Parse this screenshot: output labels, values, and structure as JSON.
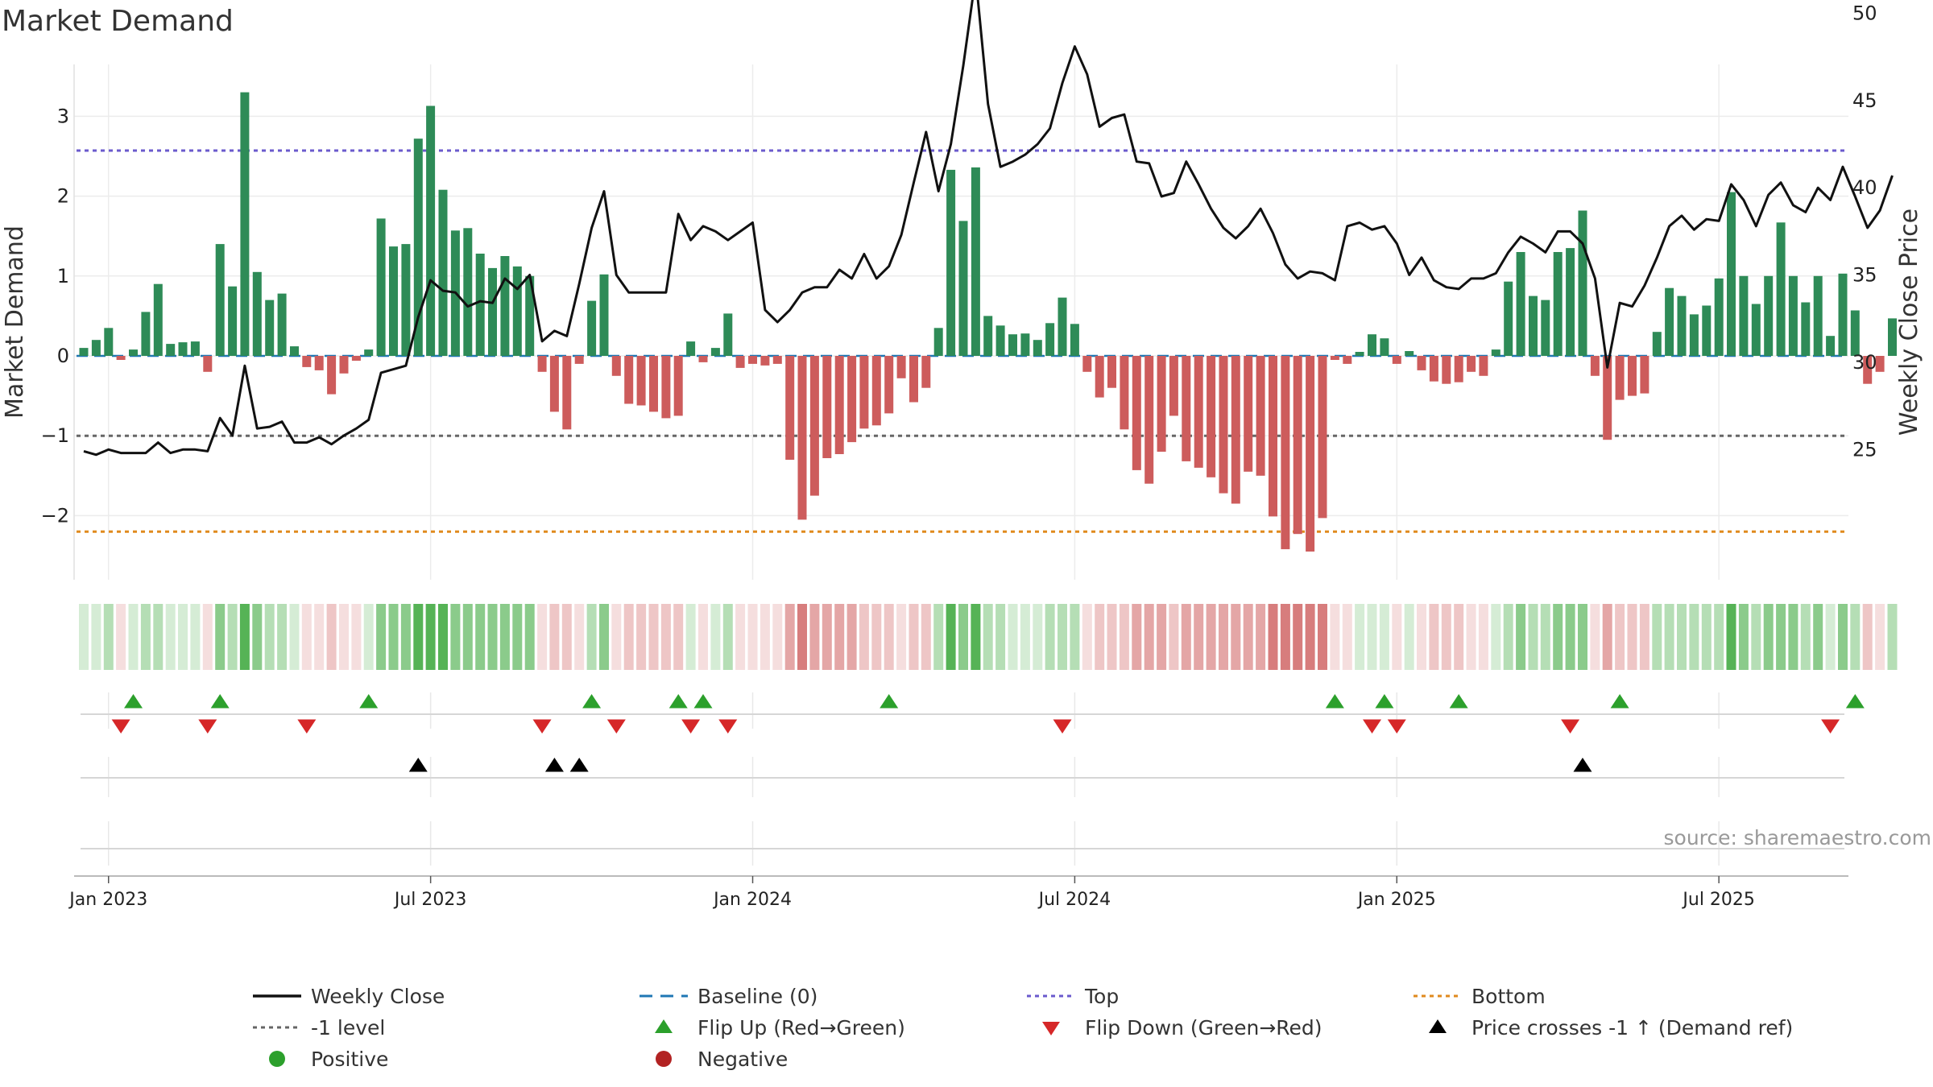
{
  "chart_data": {
    "type": "bar",
    "title": "Market Demand",
    "ylabel_left": "Market Demand",
    "ylabel_right": "Weekly Close Price",
    "ylim_left": [
      -2.7,
      3.6
    ],
    "ylim_right": [
      23.0,
      53.5
    ],
    "left_ticks": [
      3,
      2,
      1,
      0,
      -1,
      -2
    ],
    "left_tick_labels": [
      "3",
      "2",
      "1",
      "0",
      "−1",
      "−2"
    ],
    "right_ticks": [
      50,
      45,
      40,
      35,
      30,
      25
    ],
    "right_tick_labels": [
      "50",
      "45",
      "40",
      "35",
      "30",
      "25"
    ],
    "x_date_labels": [
      "Jan 2023",
      "Jul 2023",
      "Jan 2024",
      "Jul 2024",
      "Jan 2025",
      "Jul 2025"
    ],
    "x_date_label_weeks": [
      2,
      28,
      54,
      80,
      106,
      132
    ],
    "reference_lines": {
      "baseline": 0,
      "top": 2.57,
      "minus_one": -1,
      "bottom": -2.2
    },
    "demand": [
      0.1,
      0.2,
      0.35,
      -0.05,
      0.08,
      0.55,
      0.9,
      0.15,
      0.17,
      0.18,
      -0.2,
      1.4,
      0.87,
      3.3,
      1.05,
      0.7,
      0.78,
      0.12,
      -0.14,
      -0.18,
      -0.48,
      -0.22,
      -0.06,
      0.08,
      1.72,
      1.37,
      1.4,
      2.72,
      3.13,
      2.08,
      1.57,
      1.6,
      1.28,
      1.1,
      1.25,
      1.12,
      1.0,
      -0.2,
      -0.7,
      -0.92,
      -0.1,
      0.69,
      1.02,
      -0.25,
      -0.6,
      -0.62,
      -0.7,
      -0.78,
      -0.75,
      0.18,
      -0.08,
      0.1,
      0.53,
      -0.15,
      -0.1,
      -0.12,
      -0.1,
      -1.3,
      -2.05,
      -1.75,
      -1.28,
      -1.23,
      -1.08,
      -0.91,
      -0.87,
      -0.72,
      -0.28,
      -0.58,
      -0.4,
      0.35,
      2.33,
      1.69,
      2.36,
      0.5,
      0.38,
      0.27,
      0.28,
      0.2,
      0.41,
      0.73,
      0.4,
      -0.2,
      -0.52,
      -0.4,
      -0.92,
      -1.43,
      -1.6,
      -1.2,
      -0.75,
      -1.32,
      -1.4,
      -1.52,
      -1.72,
      -1.85,
      -1.45,
      -1.5,
      -2.01,
      -2.42,
      -2.23,
      -2.45,
      -2.03,
      -0.05,
      -0.1,
      0.05,
      0.27,
      0.22,
      -0.1,
      0.06,
      -0.18,
      -0.32,
      -0.35,
      -0.33,
      -0.2,
      -0.25,
      0.08,
      0.93,
      1.3,
      0.75,
      0.7,
      1.3,
      1.35,
      1.82,
      -0.25,
      -1.05,
      -0.55,
      -0.5,
      -0.47,
      0.3,
      0.85,
      0.75,
      0.52,
      0.63,
      0.97,
      2.05,
      1.0,
      0.65,
      1.0,
      1.67,
      1.0,
      0.67,
      1.0,
      0.25,
      1.03,
      0.57,
      -0.35,
      -0.2,
      0.47
    ],
    "price": [
      24.9,
      24.7,
      25.0,
      24.8,
      24.8,
      24.8,
      25.4,
      24.8,
      25.0,
      25.0,
      24.9,
      26.8,
      25.8,
      29.8,
      26.2,
      26.3,
      26.6,
      25.4,
      25.4,
      25.7,
      25.3,
      25.8,
      26.2,
      26.7,
      29.4,
      29.6,
      29.8,
      32.6,
      34.7,
      34.1,
      34.0,
      33.2,
      33.5,
      33.4,
      34.8,
      34.2,
      35.0,
      31.2,
      31.8,
      31.5,
      34.5,
      37.7,
      39.8,
      35.0,
      34.0,
      34.0,
      34.0,
      34.0,
      38.5,
      37.0,
      37.8,
      37.5,
      37.0,
      37.5,
      38.0,
      33.0,
      32.3,
      33.0,
      34.0,
      34.3,
      34.3,
      35.3,
      34.8,
      36.2,
      34.8,
      35.5,
      37.3,
      40.3,
      43.2,
      39.8,
      42.5,
      47.0,
      52.1,
      44.8,
      41.2,
      41.5,
      41.9,
      42.5,
      43.4,
      46.0,
      48.1,
      46.5,
      43.5,
      44.0,
      44.2,
      41.5,
      41.4,
      39.5,
      39.7,
      41.5,
      40.2,
      38.8,
      37.7,
      37.1,
      37.8,
      38.8,
      37.4,
      35.6,
      34.8,
      35.2,
      35.1,
      34.7,
      37.8,
      38.0,
      37.6,
      37.8,
      36.8,
      35.0,
      36.0,
      34.7,
      34.3,
      34.2,
      34.8,
      34.8,
      35.1,
      36.3,
      37.2,
      36.8,
      36.3,
      37.5,
      37.5,
      36.8,
      34.8,
      29.7,
      33.4,
      33.2,
      34.4,
      36.0,
      37.8,
      38.4,
      37.6,
      38.2,
      38.1,
      40.2,
      39.3,
      37.8,
      39.6,
      40.3,
      39.0,
      38.6,
      40.0,
      39.3,
      41.2,
      39.5,
      37.7,
      38.7,
      40.7
    ],
    "strip_opacity_levels": [
      "0.2",
      "0.35",
      "0.55",
      "0.8"
    ],
    "flip_up_weeks": [
      4,
      11,
      23,
      41,
      48,
      50,
      65,
      101,
      105,
      111,
      124,
      143
    ],
    "flip_down_weeks": [
      3,
      10,
      18,
      37,
      43,
      49,
      52,
      79,
      104,
      106,
      120,
      141
    ],
    "price_cross_weeks": [
      27,
      38,
      40,
      121
    ],
    "source_text": "source: sharemaestro.com",
    "colors": {
      "positive_bar": "#2e8b57",
      "negative_bar": "#cd5c5c",
      "price_line": "#111111",
      "baseline": "#1f77b4",
      "top": "#6a5acd",
      "minus_one": "#666666",
      "bottom": "#e08a1e",
      "flip_up": "#2ca02c",
      "flip_down": "#d62728",
      "price_cross": "#000000",
      "strip_green": "#2ca02c",
      "strip_red": "#cd5c5c",
      "positive_dot": "#2ca02c",
      "negative_dot": "#b22222"
    },
    "legend": [
      {
        "label": "Weekly Close",
        "icon": "solid-line"
      },
      {
        "label": "Baseline (0)",
        "icon": "dashed-line"
      },
      {
        "label": "Top",
        "icon": "dotted-line"
      },
      {
        "label": "Bottom",
        "icon": "dotted-line"
      },
      {
        "label": "-1 level",
        "icon": "dotted-line"
      },
      {
        "label": "Flip Up (Red→Green)",
        "icon": "up-triangle"
      },
      {
        "label": "Flip Down (Green→Red)",
        "icon": "down-triangle"
      },
      {
        "label": "Price crosses -1 ↑ (Demand ref)",
        "icon": "up-triangle"
      },
      {
        "label": "Positive",
        "icon": "dot"
      },
      {
        "label": "Negative",
        "icon": "dot"
      }
    ]
  }
}
